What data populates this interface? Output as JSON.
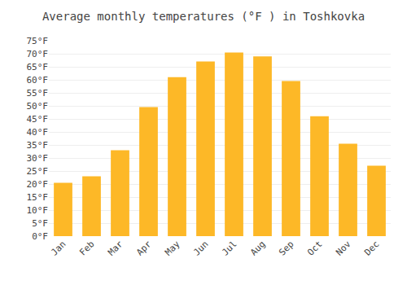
{
  "chart_data": {
    "type": "bar",
    "title": "Average monthly temperatures (°F ) in Toshkovka",
    "categories": [
      "Jan",
      "Feb",
      "Mar",
      "Apr",
      "May",
      "Jun",
      "Jul",
      "Aug",
      "Sep",
      "Oct",
      "Nov",
      "Dec"
    ],
    "values": [
      20.5,
      23.0,
      33.0,
      49.5,
      61.0,
      67.0,
      70.5,
      69.0,
      59.5,
      46.0,
      35.5,
      27.0
    ],
    "color": "#FDB827",
    "ylim": [
      0,
      75
    ],
    "yticks": [
      {
        "value": 0,
        "label": "0°F"
      },
      {
        "value": 5,
        "label": "5°F"
      },
      {
        "value": 10,
        "label": "10°F"
      },
      {
        "value": 15,
        "label": "15°F"
      },
      {
        "value": 20,
        "label": "20°F"
      },
      {
        "value": 25,
        "label": "25°F"
      },
      {
        "value": 30,
        "label": "30°F"
      },
      {
        "value": 35,
        "label": "35°F"
      },
      {
        "value": 40,
        "label": "40°F"
      },
      {
        "value": 45,
        "label": "45°F"
      },
      {
        "value": 50,
        "label": "50°F"
      },
      {
        "value": 55,
        "label": "55°F"
      },
      {
        "value": 60,
        "label": "60°F"
      },
      {
        "value": 65,
        "label": "65°F"
      },
      {
        "value": 70,
        "label": "70°F"
      },
      {
        "value": 75,
        "label": "75°F"
      }
    ],
    "grid": true
  }
}
